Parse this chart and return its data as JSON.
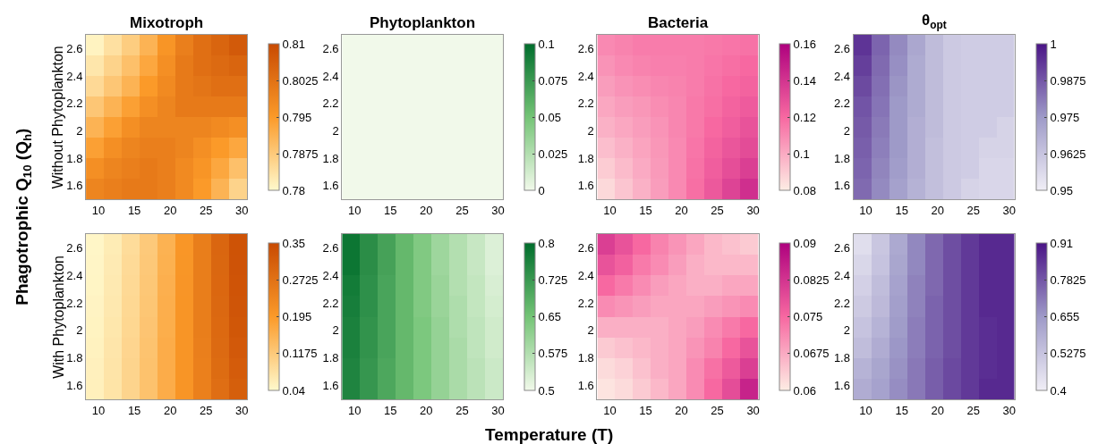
{
  "chart_data": [
    {
      "type": "heatmap",
      "title": "Mixotroph",
      "ylabel": "Without Phytoplankton",
      "annotations": [
        "Phagotrophic Q$_{10}$ (Q$_{h}$)",
        "Temperature (T)"
      ],
      "x": [
        9.5,
        12,
        14.5,
        17,
        19.5,
        22,
        24.5,
        27,
        29.5
      ],
      "y": [
        2.625,
        2.475,
        2.325,
        2.175,
        2.025,
        1.875,
        1.725,
        1.575
      ],
      "xlim": [
        8.25,
        30.75
      ],
      "ylim": [
        1.5,
        2.7
      ],
      "xticks": [
        10,
        15,
        20,
        25,
        30
      ],
      "yticks": [
        1.6,
        1.8,
        2,
        2.2,
        2.4,
        2.6
      ],
      "clim": [
        0.78,
        0.81
      ],
      "cticks": [
        0.78,
        0.7875,
        0.795,
        0.8025,
        0.81
      ],
      "colors": [
        "#fff9cc",
        "#fb9a29",
        "#c84a02"
      ],
      "cells": [
        [
          0.781,
          0.784,
          0.787,
          0.791,
          0.796,
          0.8,
          0.803,
          0.805,
          0.807
        ],
        [
          0.783,
          0.786,
          0.789,
          0.793,
          0.797,
          0.801,
          0.803,
          0.804,
          0.805
        ],
        [
          0.785,
          0.788,
          0.791,
          0.795,
          0.798,
          0.801,
          0.802,
          0.803,
          0.803
        ],
        [
          0.788,
          0.791,
          0.794,
          0.797,
          0.799,
          0.801,
          0.801,
          0.801,
          0.801
        ],
        [
          0.791,
          0.794,
          0.797,
          0.799,
          0.799,
          0.799,
          0.799,
          0.798,
          0.797
        ],
        [
          0.794,
          0.797,
          0.799,
          0.8,
          0.8,
          0.799,
          0.797,
          0.795,
          0.793
        ],
        [
          0.797,
          0.799,
          0.8,
          0.801,
          0.8,
          0.798,
          0.796,
          0.793,
          0.789
        ],
        [
          0.799,
          0.8,
          0.801,
          0.801,
          0.8,
          0.798,
          0.795,
          0.791,
          0.786
        ]
      ]
    },
    {
      "type": "heatmap",
      "title": "Phytoplankton",
      "x": [
        9.5,
        12,
        14.5,
        17,
        19.5,
        22,
        24.5,
        27,
        29.5
      ],
      "y": [
        2.625,
        2.475,
        2.325,
        2.175,
        2.025,
        1.875,
        1.725,
        1.575
      ],
      "xlim": [
        8.25,
        30.75
      ],
      "ylim": [
        1.5,
        2.7
      ],
      "xticks": [
        10,
        15,
        20,
        25,
        30
      ],
      "yticks": [
        1.6,
        1.8,
        2,
        2.2,
        2.4,
        2.6
      ],
      "clim": [
        0,
        0.1
      ],
      "cticks": [
        0,
        0.025,
        0.05,
        0.075,
        0.1
      ],
      "colors": [
        "#f1f9ea",
        "#74c476",
        "#006d2c"
      ],
      "cells": [
        [
          0,
          0,
          0,
          0,
          0,
          0,
          0,
          0,
          0
        ],
        [
          0,
          0,
          0,
          0,
          0,
          0,
          0,
          0,
          0
        ],
        [
          0,
          0,
          0,
          0,
          0,
          0,
          0,
          0,
          0
        ],
        [
          0,
          0,
          0,
          0,
          0,
          0,
          0,
          0,
          0
        ],
        [
          0,
          0,
          0,
          0,
          0,
          0,
          0,
          0,
          0
        ],
        [
          0,
          0,
          0,
          0,
          0,
          0,
          0,
          0,
          0
        ],
        [
          0,
          0,
          0,
          0,
          0,
          0,
          0,
          0,
          0
        ],
        [
          0,
          0,
          0,
          0,
          0,
          0,
          0,
          0,
          0
        ]
      ]
    },
    {
      "type": "heatmap",
      "title": "Bacteria",
      "x": [
        9.5,
        12,
        14.5,
        17,
        19.5,
        22,
        24.5,
        27,
        29.5
      ],
      "y": [
        2.625,
        2.475,
        2.325,
        2.175,
        2.025,
        1.875,
        1.725,
        1.575
      ],
      "xlim": [
        8.25,
        30.75
      ],
      "ylim": [
        1.5,
        2.7
      ],
      "xticks": [
        10,
        15,
        20,
        25,
        30
      ],
      "yticks": [
        1.6,
        1.8,
        2,
        2.2,
        2.4,
        2.6
      ],
      "clim": [
        0.08,
        0.16
      ],
      "cticks": [
        0.08,
        0.1,
        0.12,
        0.14,
        0.16
      ],
      "colors": [
        "#fdede4",
        "#f768a1",
        "#ae017e"
      ],
      "cells": [
        [
          0.11,
          0.112,
          0.114,
          0.114,
          0.114,
          0.114,
          0.115,
          0.116,
          0.117
        ],
        [
          0.107,
          0.11,
          0.112,
          0.113,
          0.113,
          0.114,
          0.116,
          0.118,
          0.12
        ],
        [
          0.104,
          0.107,
          0.109,
          0.111,
          0.112,
          0.114,
          0.117,
          0.12,
          0.122
        ],
        [
          0.101,
          0.104,
          0.106,
          0.109,
          0.111,
          0.115,
          0.118,
          0.122,
          0.125
        ],
        [
          0.098,
          0.101,
          0.104,
          0.107,
          0.111,
          0.115,
          0.12,
          0.124,
          0.128
        ],
        [
          0.094,
          0.098,
          0.102,
          0.106,
          0.11,
          0.116,
          0.122,
          0.127,
          0.131
        ],
        [
          0.09,
          0.095,
          0.1,
          0.105,
          0.11,
          0.117,
          0.124,
          0.13,
          0.136
        ],
        [
          0.086,
          0.092,
          0.098,
          0.104,
          0.11,
          0.118,
          0.126,
          0.134,
          0.142
        ]
      ]
    },
    {
      "type": "heatmap",
      "title": "θ$_{opt}$",
      "x": [
        9.5,
        12,
        14.5,
        17,
        19.5,
        22,
        24.5,
        27,
        29.5
      ],
      "y": [
        2.625,
        2.475,
        2.325,
        2.175,
        2.025,
        1.875,
        1.725,
        1.575
      ],
      "xlim": [
        8.25,
        30.75
      ],
      "ylim": [
        1.5,
        2.7
      ],
      "xticks": [
        10,
        15,
        20,
        25,
        30
      ],
      "yticks": [
        1.6,
        1.8,
        2,
        2.2,
        2.4,
        2.6
      ],
      "clim": [
        0.95,
        1
      ],
      "cticks": [
        0.95,
        0.9625,
        0.975,
        0.9875,
        1
      ],
      "colors": [
        "#f0eef6",
        "#9e9ac8",
        "#4a1486"
      ],
      "cells": [
        [
          0.994,
          0.985,
          0.978,
          0.971,
          0.965,
          0.961,
          0.96,
          0.96,
          0.96
        ],
        [
          0.992,
          0.984,
          0.977,
          0.97,
          0.965,
          0.961,
          0.96,
          0.96,
          0.96
        ],
        [
          0.99,
          0.983,
          0.976,
          0.97,
          0.965,
          0.961,
          0.96,
          0.96,
          0.96
        ],
        [
          0.988,
          0.982,
          0.975,
          0.97,
          0.965,
          0.961,
          0.96,
          0.96,
          0.96
        ],
        [
          0.987,
          0.981,
          0.975,
          0.969,
          0.965,
          0.961,
          0.96,
          0.96,
          0.958
        ],
        [
          0.986,
          0.98,
          0.975,
          0.969,
          0.964,
          0.961,
          0.96,
          0.958,
          0.958
        ],
        [
          0.985,
          0.979,
          0.974,
          0.969,
          0.964,
          0.961,
          0.96,
          0.957,
          0.957
        ],
        [
          0.984,
          0.978,
          0.973,
          0.968,
          0.964,
          0.961,
          0.958,
          0.957,
          0.957
        ]
      ]
    },
    {
      "type": "heatmap",
      "ylabel": "With Phytoplankton",
      "x": [
        9.5,
        12,
        14.5,
        17,
        19.5,
        22,
        24.5,
        27,
        29.5
      ],
      "y": [
        2.625,
        2.475,
        2.325,
        2.175,
        2.025,
        1.875,
        1.725,
        1.575
      ],
      "xlim": [
        8.25,
        30.75
      ],
      "ylim": [
        1.5,
        2.7
      ],
      "xticks": [
        10,
        15,
        20,
        25,
        30
      ],
      "yticks": [
        1.6,
        1.8,
        2,
        2.2,
        2.4,
        2.6
      ],
      "clim": [
        0.04,
        0.35
      ],
      "cticks": [
        0.04,
        0.1175,
        0.195,
        0.2725,
        0.35
      ],
      "colors": [
        "#fff9cc",
        "#fb9a29",
        "#c84a02"
      ],
      "cells": [
        [
          0.045,
          0.062,
          0.088,
          0.118,
          0.156,
          0.202,
          0.25,
          0.295,
          0.333
        ],
        [
          0.046,
          0.064,
          0.09,
          0.12,
          0.158,
          0.203,
          0.25,
          0.294,
          0.332
        ],
        [
          0.047,
          0.066,
          0.092,
          0.122,
          0.16,
          0.204,
          0.25,
          0.293,
          0.33
        ],
        [
          0.049,
          0.068,
          0.094,
          0.124,
          0.162,
          0.205,
          0.25,
          0.292,
          0.328
        ],
        [
          0.05,
          0.07,
          0.096,
          0.126,
          0.163,
          0.205,
          0.25,
          0.29,
          0.325
        ],
        [
          0.052,
          0.072,
          0.098,
          0.128,
          0.165,
          0.205,
          0.248,
          0.288,
          0.32
        ],
        [
          0.054,
          0.074,
          0.1,
          0.13,
          0.165,
          0.205,
          0.245,
          0.285,
          0.315
        ],
        [
          0.055,
          0.075,
          0.1,
          0.13,
          0.165,
          0.205,
          0.245,
          0.28,
          0.31
        ]
      ]
    },
    {
      "type": "heatmap",
      "x": [
        9.5,
        12,
        14.5,
        17,
        19.5,
        22,
        24.5,
        27,
        29.5
      ],
      "y": [
        2.625,
        2.475,
        2.325,
        2.175,
        2.025,
        1.875,
        1.725,
        1.575
      ],
      "xlim": [
        8.25,
        30.75
      ],
      "ylim": [
        1.5,
        2.7
      ],
      "xticks": [
        10,
        15,
        20,
        25,
        30
      ],
      "yticks": [
        1.6,
        1.8,
        2,
        2.2,
        2.4,
        2.6
      ],
      "clim": [
        0.5,
        0.8
      ],
      "cticks": [
        0.5,
        0.575,
        0.65,
        0.725,
        0.8
      ],
      "colors": [
        "#f1f9ea",
        "#74c476",
        "#006d2c"
      ],
      "cells": [
        [
          0.785,
          0.745,
          0.71,
          0.67,
          0.635,
          0.6,
          0.575,
          0.55,
          0.525
        ],
        [
          0.785,
          0.745,
          0.71,
          0.67,
          0.635,
          0.6,
          0.575,
          0.55,
          0.525
        ],
        [
          0.775,
          0.74,
          0.705,
          0.67,
          0.635,
          0.605,
          0.575,
          0.555,
          0.53
        ],
        [
          0.77,
          0.74,
          0.705,
          0.67,
          0.635,
          0.605,
          0.58,
          0.555,
          0.535
        ],
        [
          0.765,
          0.735,
          0.705,
          0.67,
          0.64,
          0.61,
          0.58,
          0.56,
          0.54
        ],
        [
          0.765,
          0.735,
          0.705,
          0.67,
          0.64,
          0.61,
          0.585,
          0.56,
          0.54
        ],
        [
          0.76,
          0.73,
          0.7,
          0.67,
          0.64,
          0.61,
          0.585,
          0.565,
          0.545
        ],
        [
          0.76,
          0.73,
          0.7,
          0.67,
          0.64,
          0.61,
          0.585,
          0.565,
          0.545
        ]
      ]
    },
    {
      "type": "heatmap",
      "x": [
        9.5,
        12,
        14.5,
        17,
        19.5,
        22,
        24.5,
        27,
        29.5
      ],
      "y": [
        2.625,
        2.475,
        2.325,
        2.175,
        2.025,
        1.875,
        1.725,
        1.575
      ],
      "xlim": [
        8.25,
        30.75
      ],
      "ylim": [
        1.5,
        2.7
      ],
      "xticks": [
        10,
        15,
        20,
        25,
        30
      ],
      "yticks": [
        1.6,
        1.8,
        2,
        2.2,
        2.4,
        2.6
      ],
      "clim": [
        0.06,
        0.09
      ],
      "cticks": [
        0.06,
        0.0675,
        0.075,
        0.0825,
        0.09
      ],
      "colors": [
        "#fdede4",
        "#f768a1",
        "#ae017e"
      ],
      "cells": [
        [
          0.081,
          0.078,
          0.075,
          0.072,
          0.07,
          0.068,
          0.066,
          0.065,
          0.064
        ],
        [
          0.078,
          0.076,
          0.073,
          0.071,
          0.069,
          0.067,
          0.066,
          0.066,
          0.066
        ],
        [
          0.075,
          0.073,
          0.071,
          0.069,
          0.068,
          0.067,
          0.067,
          0.068,
          0.068
        ],
        [
          0.071,
          0.07,
          0.069,
          0.068,
          0.068,
          0.068,
          0.069,
          0.07,
          0.071
        ],
        [
          0.067,
          0.067,
          0.067,
          0.067,
          0.068,
          0.069,
          0.071,
          0.073,
          0.075
        ],
        [
          0.064,
          0.065,
          0.066,
          0.067,
          0.068,
          0.07,
          0.072,
          0.075,
          0.078
        ],
        [
          0.062,
          0.063,
          0.065,
          0.067,
          0.068,
          0.071,
          0.074,
          0.077,
          0.081
        ],
        [
          0.061,
          0.062,
          0.064,
          0.066,
          0.068,
          0.071,
          0.075,
          0.079,
          0.085
        ]
      ]
    },
    {
      "type": "heatmap",
      "x": [
        9.5,
        12,
        14.5,
        17,
        19.5,
        22,
        24.5,
        27,
        29.5
      ],
      "y": [
        2.625,
        2.475,
        2.325,
        2.175,
        2.025,
        1.875,
        1.725,
        1.575
      ],
      "xlim": [
        8.25,
        30.75
      ],
      "ylim": [
        1.5,
        2.7
      ],
      "xticks": [
        10,
        15,
        20,
        25,
        30
      ],
      "yticks": [
        1.6,
        1.8,
        2,
        2.2,
        2.4,
        2.6
      ],
      "clim": [
        0.4,
        0.91
      ],
      "cticks": [
        0.4,
        0.5275,
        0.655,
        0.7825,
        0.91
      ],
      "colors": [
        "#f0eef6",
        "#9e9ac8",
        "#4a1486"
      ],
      "cells": [
        [
          0.45,
          0.52,
          0.61,
          0.69,
          0.75,
          0.8,
          0.84,
          0.87,
          0.87
        ],
        [
          0.47,
          0.53,
          0.62,
          0.69,
          0.75,
          0.8,
          0.84,
          0.87,
          0.87
        ],
        [
          0.49,
          0.55,
          0.63,
          0.7,
          0.75,
          0.8,
          0.84,
          0.87,
          0.87
        ],
        [
          0.51,
          0.56,
          0.64,
          0.7,
          0.76,
          0.8,
          0.84,
          0.87,
          0.87
        ],
        [
          0.53,
          0.58,
          0.65,
          0.71,
          0.76,
          0.8,
          0.84,
          0.86,
          0.87
        ],
        [
          0.55,
          0.6,
          0.66,
          0.71,
          0.76,
          0.8,
          0.84,
          0.86,
          0.87
        ],
        [
          0.58,
          0.62,
          0.67,
          0.72,
          0.77,
          0.81,
          0.84,
          0.86,
          0.87
        ],
        [
          0.6,
          0.63,
          0.68,
          0.72,
          0.77,
          0.81,
          0.84,
          0.87,
          0.87
        ]
      ]
    }
  ]
}
